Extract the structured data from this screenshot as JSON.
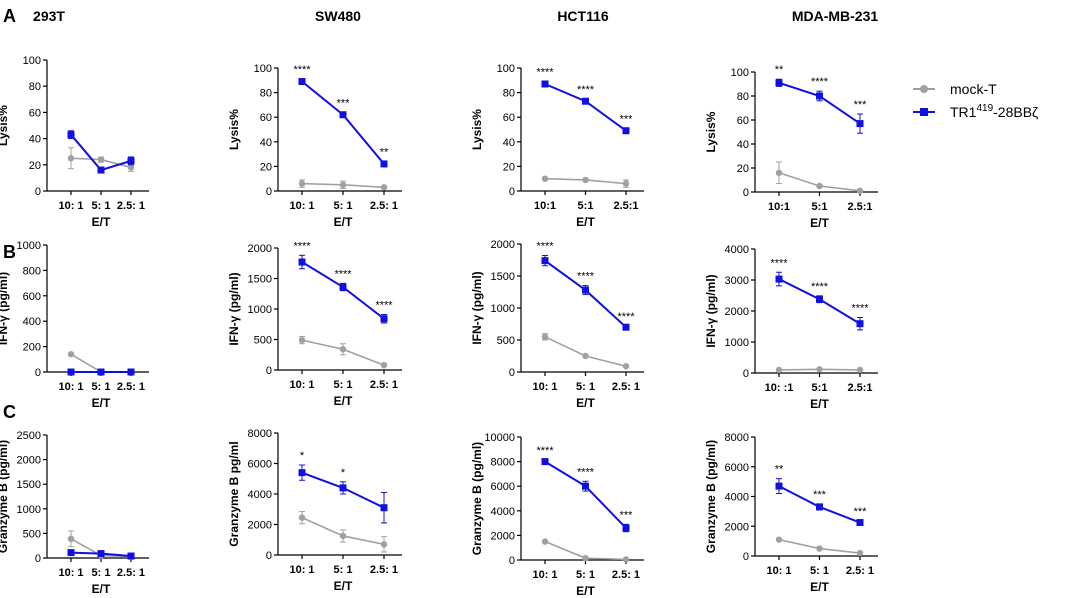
{
  "columns": [
    "293T",
    "SW480",
    "HCT116",
    "MDA-MB-231"
  ],
  "rows": [
    {
      "label": "A",
      "ylabels": [
        "Lysis%",
        "Lysis%",
        "Lysis%",
        "Lysis%"
      ]
    },
    {
      "label": "B",
      "ylabels": [
        "IFN-γ (pg/ml)",
        "IFN-γ (pg/ml)",
        "IFN-γ (pg/ml)",
        "IFN-γ (pg/ml)"
      ]
    },
    {
      "label": "C",
      "ylabels": [
        "Granzyme B (pg/ml)",
        "Granzyme B pg/ml",
        "Granzyme B (pg/ml)",
        "Granzyme B (pg/ml)"
      ]
    }
  ],
  "legend": {
    "items": [
      {
        "name": "mock-T",
        "color": "#a0a0a0",
        "marker": "circle"
      },
      {
        "name_main": "TR1",
        "name_sup": "419",
        "name_tail": "-28BBζ",
        "color": "#1010e0",
        "marker": "square"
      }
    ]
  },
  "colors": {
    "mock": "#a0a0a0",
    "car": "#1010e0"
  },
  "chart_data": [
    {
      "type": "line",
      "panel": "A-293T",
      "xlabel": "E/T",
      "ylabel": "Lysis%",
      "ylim": [
        0,
        100
      ],
      "yticks": [
        0,
        20,
        40,
        60,
        80,
        100
      ],
      "categories": [
        "10: 1",
        "5: 1",
        "2.5: 1"
      ],
      "series": [
        {
          "name": "mock-T",
          "values": [
            25,
            24,
            18
          ],
          "err": [
            8,
            2,
            3
          ]
        },
        {
          "name": "TR1419-28BBζ",
          "values": [
            43,
            16,
            23
          ],
          "err": [
            3,
            2,
            3
          ]
        }
      ],
      "annotations": [
        "",
        "",
        ""
      ]
    },
    {
      "type": "line",
      "panel": "A-SW480",
      "xlabel": "E/T",
      "ylabel": "Lysis%",
      "ylim": [
        0,
        100
      ],
      "yticks": [
        0,
        20,
        40,
        60,
        80,
        100
      ],
      "categories": [
        "10: 1",
        "5: 1",
        "2.5: 1"
      ],
      "series": [
        {
          "name": "mock-T",
          "values": [
            6,
            5,
            3
          ],
          "err": [
            3,
            3,
            1
          ]
        },
        {
          "name": "TR1419-28BBζ",
          "values": [
            89,
            62,
            22
          ],
          "err": [
            2,
            2,
            2
          ]
        }
      ],
      "annotations": [
        "****",
        "***",
        "**"
      ]
    },
    {
      "type": "line",
      "panel": "A-HCT116",
      "xlabel": "E/T",
      "ylabel": "Lysis%",
      "ylim": [
        0,
        100
      ],
      "yticks": [
        0,
        20,
        40,
        60,
        80,
        100
      ],
      "categories": [
        "10:1",
        "5:1",
        "2.5:1"
      ],
      "series": [
        {
          "name": "mock-T",
          "values": [
            10,
            9,
            6
          ],
          "err": [
            1,
            1,
            3
          ]
        },
        {
          "name": "TR1419-28BBζ",
          "values": [
            87,
            73,
            49
          ],
          "err": [
            2,
            2,
            2
          ]
        }
      ],
      "annotations": [
        "****",
        "****",
        "***"
      ]
    },
    {
      "type": "line",
      "panel": "A-MDA-MB-231",
      "xlabel": "E/T",
      "ylabel": "Lysis%",
      "ylim": [
        0,
        100
      ],
      "yticks": [
        0,
        20,
        40,
        60,
        80,
        100
      ],
      "categories": [
        "10:1",
        "5:1",
        "2.5:1"
      ],
      "series": [
        {
          "name": "mock-T",
          "values": [
            16,
            5,
            1
          ],
          "err": [
            9,
            1,
            1
          ]
        },
        {
          "name": "TR1419-28BBζ",
          "values": [
            91,
            80,
            57
          ],
          "err": [
            3,
            4,
            8
          ]
        }
      ],
      "annotations": [
        "**",
        "****",
        "***"
      ]
    },
    {
      "type": "line",
      "panel": "B-293T",
      "xlabel": "E/T",
      "ylabel": "IFN-γ (pg/ml)",
      "ylim": [
        0,
        1000
      ],
      "yticks": [
        0,
        200,
        400,
        600,
        800,
        1000
      ],
      "categories": [
        "10: 1",
        "5: 1",
        "2.5: 1"
      ],
      "series": [
        {
          "name": "mock-T",
          "values": [
            140,
            0,
            0
          ],
          "err": [
            0,
            0,
            0
          ]
        },
        {
          "name": "TR1419-28BBζ",
          "values": [
            0,
            0,
            0
          ],
          "err": [
            0,
            0,
            0
          ]
        }
      ],
      "annotations": [
        "",
        "",
        ""
      ]
    },
    {
      "type": "line",
      "panel": "B-SW480",
      "xlabel": "E/T",
      "ylabel": "IFN-γ (pg/ml)",
      "ylim": [
        0,
        2000
      ],
      "yticks": [
        0,
        500,
        1000,
        1500,
        2000
      ],
      "categories": [
        "10: 1",
        "5: 1",
        "2.5: 1"
      ],
      "series": [
        {
          "name": "mock-T",
          "values": [
            490,
            340,
            80
          ],
          "err": [
            60,
            90,
            10
          ]
        },
        {
          "name": "TR1419-28BBζ",
          "values": [
            1770,
            1360,
            840
          ],
          "err": [
            110,
            60,
            70
          ]
        }
      ],
      "annotations": [
        "****",
        "****",
        "****"
      ]
    },
    {
      "type": "line",
      "panel": "B-HCT116",
      "xlabel": "E/T",
      "ylabel": "IFN-γ (pg/ml)",
      "ylim": [
        0,
        2000
      ],
      "yticks": [
        0,
        500,
        1000,
        1500,
        2000
      ],
      "categories": [
        "10: 1",
        "5: 1",
        "2.5: 1"
      ],
      "series": [
        {
          "name": "mock-T",
          "values": [
            550,
            250,
            90
          ],
          "err": [
            50,
            10,
            10
          ]
        },
        {
          "name": "TR1419-28BBζ",
          "values": [
            1740,
            1280,
            700
          ],
          "err": [
            80,
            70,
            20
          ]
        }
      ],
      "annotations": [
        "****",
        "****",
        "****"
      ]
    },
    {
      "type": "line",
      "panel": "B-MDA-MB-231",
      "xlabel": "E/T",
      "ylabel": "IFN-γ (pg/ml)",
      "ylim": [
        0,
        4000
      ],
      "yticks": [
        0,
        1000,
        2000,
        3000,
        4000
      ],
      "categories": [
        "10: :1",
        "5:1",
        "2.5:1"
      ],
      "series": [
        {
          "name": "mock-T",
          "values": [
            100,
            120,
            100
          ],
          "err": [
            10,
            10,
            10
          ]
        },
        {
          "name": "TR1419-28BBζ",
          "values": [
            3030,
            2380,
            1590
          ],
          "err": [
            220,
            110,
            200
          ]
        }
      ],
      "annotations": [
        "****",
        "****",
        "****"
      ]
    },
    {
      "type": "line",
      "panel": "C-293T",
      "xlabel": "E/T",
      "ylabel": "Granzyme B (pg/ml)",
      "ylim": [
        0,
        2500
      ],
      "yticks": [
        0,
        500,
        1000,
        1500,
        2000,
        2500
      ],
      "categories": [
        "10: 1",
        "5: 1",
        "2.5: 1"
      ],
      "series": [
        {
          "name": "mock-T",
          "values": [
            390,
            50,
            30
          ],
          "err": [
            160,
            20,
            10
          ]
        },
        {
          "name": "TR1419-28BBζ",
          "values": [
            110,
            90,
            40
          ],
          "err": [
            10,
            10,
            10
          ]
        }
      ],
      "annotations": [
        "",
        "",
        ""
      ]
    },
    {
      "type": "line",
      "panel": "C-SW480",
      "xlabel": "E/T",
      "ylabel": "Granzyme B pg/ml",
      "ylim": [
        0,
        8000
      ],
      "yticks": [
        0,
        2000,
        4000,
        6000,
        8000
      ],
      "categories": [
        "10: 1",
        "5: 1",
        "2.5: 1"
      ],
      "series": [
        {
          "name": "mock-T",
          "values": [
            2450,
            1250,
            700
          ],
          "err": [
            400,
            400,
            500
          ]
        },
        {
          "name": "TR1419-28BBζ",
          "values": [
            5400,
            4400,
            3100
          ],
          "err": [
            500,
            400,
            1000
          ]
        }
      ],
      "annotations": [
        "*",
        "*",
        ""
      ]
    },
    {
      "type": "line",
      "panel": "C-HCT116",
      "xlabel": "E/T",
      "ylabel": "Granzyme B (pg/ml)",
      "ylim": [
        0,
        10000
      ],
      "yticks": [
        0,
        2000,
        4000,
        6000,
        8000,
        10000
      ],
      "categories": [
        "10: 1",
        "5: 1",
        "2.5: 1"
      ],
      "series": [
        {
          "name": "mock-T",
          "values": [
            1500,
            150,
            50
          ],
          "err": [
            50,
            20,
            20
          ]
        },
        {
          "name": "TR1419-28BBζ",
          "values": [
            8000,
            6000,
            2600
          ],
          "err": [
            150,
            400,
            300
          ]
        }
      ],
      "annotations": [
        "****",
        "****",
        "***"
      ]
    },
    {
      "type": "line",
      "panel": "C-MDA-MB-231",
      "xlabel": "E/T",
      "ylabel": "Granzyme B (pg/ml)",
      "ylim": [
        0,
        8000
      ],
      "yticks": [
        0,
        2000,
        4000,
        6000,
        8000
      ],
      "categories": [
        "10: 1",
        "5: 1",
        "2.5: 1"
      ],
      "series": [
        {
          "name": "mock-T",
          "values": [
            1100,
            500,
            200
          ],
          "err": [
            50,
            30,
            20
          ]
        },
        {
          "name": "TR1419-28BBζ",
          "values": [
            4700,
            3300,
            2250
          ],
          "err": [
            500,
            200,
            100
          ]
        }
      ],
      "annotations": [
        "**",
        "***",
        "***"
      ]
    }
  ]
}
